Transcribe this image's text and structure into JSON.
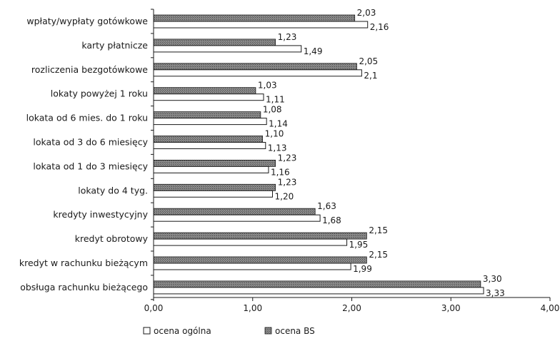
{
  "chart_data": {
    "type": "bar",
    "orientation": "horizontal",
    "categories": [
      "wpłaty/wypłaty gotówkowe",
      "karty płatnicze",
      "rozliczenia bezgotówkowe",
      "lokaty powyżej 1 roku",
      "lokata od 6 mies. do 1 roku",
      "lokata od 3 do 6 miesięcy",
      "lokata od 1 do 3 miesięcy",
      "lokaty do 4 tyg.",
      "kredyty inwestycyjny",
      "kredyt obrotowy",
      "kredyt w rachunku bieżącym",
      "obsługa rachunku bieżącego"
    ],
    "series": [
      {
        "name": "ocena BS",
        "values": [
          2.03,
          1.23,
          2.05,
          1.03,
          1.08,
          1.1,
          1.23,
          1.23,
          1.63,
          2.15,
          2.15,
          3.3
        ],
        "labels": [
          "2,03",
          "1,23",
          "2,05",
          "1,03",
          "1,08",
          "1,10",
          "1,23",
          "1,23",
          "1,63",
          "2,15",
          "2,15",
          "3,30"
        ]
      },
      {
        "name": "ocena ogólna",
        "values": [
          2.16,
          1.49,
          2.1,
          1.11,
          1.14,
          1.13,
          1.16,
          1.2,
          1.68,
          1.95,
          1.99,
          3.33
        ],
        "labels": [
          "2,16",
          "1,49",
          "2,1",
          "1,11",
          "1,14",
          "1,13",
          "1,16",
          "1,20",
          "1,68",
          "1,95",
          "1,99",
          "3,33"
        ]
      }
    ],
    "xlim": [
      0,
      4
    ],
    "xticks": [
      0,
      1,
      2,
      3,
      4
    ],
    "xtick_labels": [
      "0,00",
      "1,00",
      "2,00",
      "3,00",
      "4,00"
    ],
    "grid": false,
    "legend": {
      "position": "bottom",
      "entries": [
        "ocena ogólna",
        "ocena BS"
      ]
    },
    "colors": {
      "ocena BS": "#7a7a7a",
      "ocena ogólna": "#ffffff"
    },
    "title": "",
    "xlabel": "",
    "ylabel": ""
  }
}
